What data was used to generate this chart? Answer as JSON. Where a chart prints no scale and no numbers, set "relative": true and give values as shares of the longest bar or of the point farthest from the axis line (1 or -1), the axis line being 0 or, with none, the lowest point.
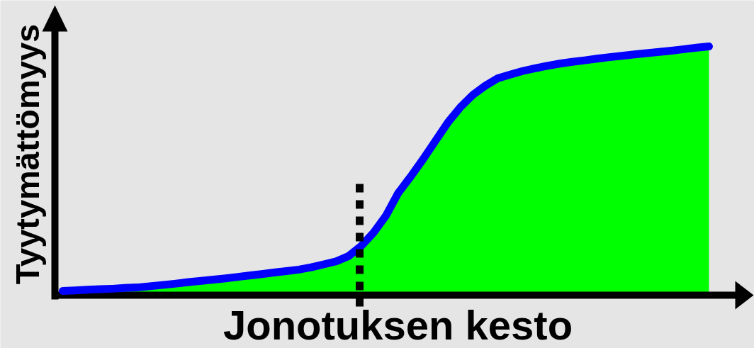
{
  "chart_data": {
    "type": "area",
    "relative": true,
    "xlabel": "Jonotuksen kesto",
    "ylabel": "Tyytymättömyys",
    "categories": [
      null,
      null,
      null,
      null,
      null,
      null,
      null,
      null,
      null,
      null,
      null,
      null,
      null,
      null,
      null,
      null,
      null,
      null,
      null,
      null,
      null,
      null,
      null,
      null,
      null,
      null,
      null,
      null,
      null,
      null,
      null,
      null,
      null,
      null,
      null,
      null,
      null,
      null,
      null,
      null,
      null,
      null,
      null,
      null,
      null,
      null,
      null,
      null,
      null,
      null,
      null,
      null,
      null
    ],
    "series": [
      {
        "color": "#00ff00",
        "values": [
          0.017,
          0.019,
          0.022,
          0.024,
          0.026,
          0.029,
          0.031,
          0.036,
          0.041,
          0.046,
          0.052,
          0.057,
          0.062,
          0.067,
          0.073,
          0.079,
          0.085,
          0.091,
          0.097,
          0.103,
          0.112,
          0.124,
          0.136,
          0.157,
          0.197,
          0.251,
          0.319,
          0.411,
          0.477,
          0.547,
          0.621,
          0.695,
          0.756,
          0.805,
          0.842,
          0.872,
          0.887,
          0.901,
          0.912,
          0.922,
          0.931,
          0.938,
          0.944,
          0.951,
          0.957,
          0.962,
          0.968,
          0.973,
          0.978,
          0.983,
          0.989,
          0.995,
          1.0
        ]
      },
      {
        "type": "line",
        "color": "#0000ff",
        "values": [
          0.017,
          0.019,
          0.022,
          0.024,
          0.026,
          0.029,
          0.031,
          0.036,
          0.041,
          0.046,
          0.052,
          0.057,
          0.062,
          0.067,
          0.073,
          0.079,
          0.085,
          0.091,
          0.097,
          0.103,
          0.112,
          0.124,
          0.136,
          0.157,
          0.197,
          0.251,
          0.319,
          0.411,
          0.477,
          0.547,
          0.621,
          0.695,
          0.756,
          0.805,
          0.842,
          0.872,
          0.887,
          0.901,
          0.912,
          0.922,
          0.931,
          0.938,
          0.944,
          0.951,
          0.957,
          0.962,
          0.968,
          0.973,
          0.978,
          0.983,
          0.989,
          0.995,
          1.0
        ]
      }
    ]
  }
}
